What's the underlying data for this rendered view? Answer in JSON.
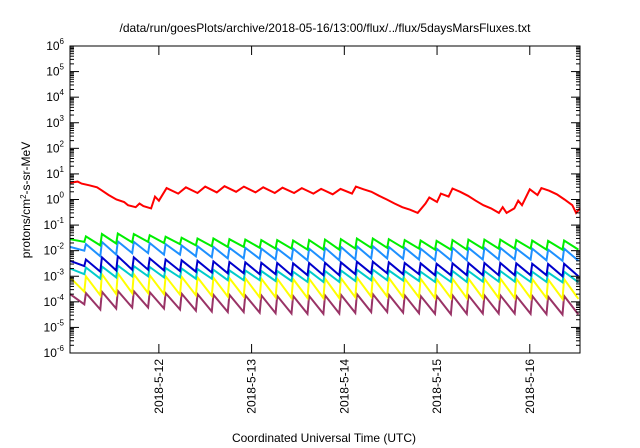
{
  "chart_data": {
    "type": "line",
    "title": "/data/run/goesPlots/archive/2018-05-16/13:00/flux/../flux/5daysMarsFluxes.txt",
    "xlabel": "Coordinated Universal Time (UTC)",
    "ylabel_parts": [
      "protons/cm",
      "2",
      "-s-sr-MeV"
    ],
    "y_scale": "log",
    "ylim": [
      1e-06,
      1000000.0
    ],
    "y_ticks": [
      {
        "base": "10",
        "exp": "-6",
        "value": 1e-06
      },
      {
        "base": "10",
        "exp": "-5",
        "value": 1e-05
      },
      {
        "base": "10",
        "exp": "-4",
        "value": 0.0001
      },
      {
        "base": "10",
        "exp": "-3",
        "value": 0.001
      },
      {
        "base": "10",
        "exp": "-2",
        "value": 0.01
      },
      {
        "base": "10",
        "exp": "-1",
        "value": 0.1
      },
      {
        "base": "10",
        "exp": "0",
        "value": 1
      },
      {
        "base": "10",
        "exp": "1",
        "value": 10
      },
      {
        "base": "10",
        "exp": "2",
        "value": 100
      },
      {
        "base": "10",
        "exp": "3",
        "value": 1000
      },
      {
        "base": "10",
        "exp": "4",
        "value": 10000
      },
      {
        "base": "10",
        "exp": "5",
        "value": 100000
      },
      {
        "base": "10",
        "exp": "6",
        "value": 1000000
      }
    ],
    "xlim": [
      "2018-05-11T01:00",
      "2018-05-16T13:00"
    ],
    "x_ticks": [
      {
        "label": "2018-5-12",
        "value": "2018-05-12T00:00"
      },
      {
        "label": "2018-5-13",
        "value": "2018-05-13T00:00"
      },
      {
        "label": "2018-5-14",
        "value": "2018-05-14T00:00"
      },
      {
        "label": "2018-5-15",
        "value": "2018-05-15T00:00"
      },
      {
        "label": "2018-5-16",
        "value": "2018-05-16T00:00"
      }
    ],
    "grid": false,
    "legend": "none",
    "series": [
      {
        "color": "#ff0000",
        "points": [
          [
            "2018-05-11T01:00",
            4.5
          ],
          [
            "2018-05-11T03:00",
            5.0
          ],
          [
            "2018-05-11T04:00",
            4.2
          ],
          [
            "2018-05-11T06:00",
            3.6
          ],
          [
            "2018-05-11T08:00",
            3.0
          ],
          [
            "2018-05-11T09:00",
            2.4
          ],
          [
            "2018-05-11T11:00",
            1.5
          ],
          [
            "2018-05-11T13:00",
            1.0
          ],
          [
            "2018-05-11T15:00",
            0.8
          ],
          [
            "2018-05-11T16:00",
            0.6
          ],
          [
            "2018-05-11T18:00",
            0.5
          ],
          [
            "2018-05-11T19:00",
            0.7
          ],
          [
            "2018-05-11T20:00",
            0.55
          ],
          [
            "2018-05-11T22:00",
            0.45
          ],
          [
            "2018-05-11T23:00",
            1.3
          ],
          [
            "2018-05-12T00:00",
            0.9
          ],
          [
            "2018-05-12T02:00",
            2.8
          ],
          [
            "2018-05-12T05:00",
            1.7
          ],
          [
            "2018-05-12T07:00",
            3.0
          ],
          [
            "2018-05-12T10:00",
            1.8
          ],
          [
            "2018-05-12T12:00",
            3.2
          ],
          [
            "2018-05-12T15:00",
            1.9
          ],
          [
            "2018-05-12T17:00",
            3.3
          ],
          [
            "2018-05-12T20:00",
            2.0
          ],
          [
            "2018-05-12T22:00",
            3.2
          ],
          [
            "2018-05-13T01:00",
            1.9
          ],
          [
            "2018-05-13T03:00",
            3.0
          ],
          [
            "2018-05-13T06:00",
            1.8
          ],
          [
            "2018-05-13T08:00",
            2.9
          ],
          [
            "2018-05-13T11:00",
            1.8
          ],
          [
            "2018-05-13T13:00",
            2.8
          ],
          [
            "2018-05-13T16:00",
            1.7
          ],
          [
            "2018-05-13T18:00",
            2.6
          ],
          [
            "2018-05-13T21:00",
            1.6
          ],
          [
            "2018-05-13T23:00",
            2.6
          ],
          [
            "2018-05-14T02:00",
            1.7
          ],
          [
            "2018-05-14T03:00",
            3.2
          ],
          [
            "2018-05-14T05:00",
            2.5
          ],
          [
            "2018-05-14T07:00",
            2.0
          ],
          [
            "2018-05-14T09:00",
            1.4
          ],
          [
            "2018-05-14T11:00",
            1.0
          ],
          [
            "2018-05-14T13:00",
            0.7
          ],
          [
            "2018-05-14T15:00",
            0.5
          ],
          [
            "2018-05-14T17:00",
            0.4
          ],
          [
            "2018-05-14T19:00",
            0.3
          ],
          [
            "2018-05-14T21:00",
            0.7
          ],
          [
            "2018-05-14T22:00",
            1.2
          ],
          [
            "2018-05-15T00:00",
            0.8
          ],
          [
            "2018-05-15T01:00",
            1.7
          ],
          [
            "2018-05-15T03:00",
            1.3
          ],
          [
            "2018-05-15T04:00",
            2.7
          ],
          [
            "2018-05-15T06:00",
            2.0
          ],
          [
            "2018-05-15T08:00",
            1.4
          ],
          [
            "2018-05-15T10:00",
            0.9
          ],
          [
            "2018-05-15T12:00",
            0.6
          ],
          [
            "2018-05-15T14:00",
            0.45
          ],
          [
            "2018-05-15T16:00",
            0.3
          ],
          [
            "2018-05-15T17:00",
            0.5
          ],
          [
            "2018-05-15T18:00",
            0.3
          ],
          [
            "2018-05-15T20:00",
            0.45
          ],
          [
            "2018-05-15T21:00",
            0.9
          ],
          [
            "2018-05-15T22:00",
            0.6
          ],
          [
            "2018-05-16T00:00",
            2.5
          ],
          [
            "2018-05-16T02:00",
            1.5
          ],
          [
            "2018-05-16T03:00",
            2.8
          ],
          [
            "2018-05-16T05:00",
            2.2
          ],
          [
            "2018-05-16T07:00",
            1.6
          ],
          [
            "2018-05-16T09:00",
            1.0
          ],
          [
            "2018-05-16T11:00",
            0.6
          ],
          [
            "2018-05-16T12:00",
            0.3
          ],
          [
            "2018-05-16T13:00",
            0.45
          ]
        ]
      },
      {
        "color": "#00ee00",
        "peaks": [
          0.028,
          0.036,
          0.045,
          0.047,
          0.045,
          0.04,
          0.035,
          0.032,
          0.03,
          0.03,
          0.028,
          0.027,
          0.026,
          0.026,
          0.025,
          0.026,
          0.027,
          0.028,
          0.03,
          0.03,
          0.028,
          0.026,
          0.025,
          0.024,
          0.026,
          0.027,
          0.027,
          0.027,
          0.026,
          0.025,
          0.024,
          0.025
        ],
        "troughs": [
          0.022,
          0.016,
          0.019,
          0.021,
          0.022,
          0.02,
          0.018,
          0.016,
          0.015,
          0.014,
          0.014,
          0.013,
          0.012,
          0.012,
          0.011,
          0.011,
          0.011,
          0.012,
          0.013,
          0.013,
          0.013,
          0.012,
          0.011,
          0.011,
          0.011,
          0.012,
          0.012,
          0.012,
          0.012,
          0.011,
          0.011,
          0.011
        ]
      },
      {
        "color": "#1e90ff",
        "peaks": [
          0.014,
          0.018,
          0.022,
          0.023,
          0.022,
          0.02,
          0.018,
          0.016,
          0.015,
          0.014,
          0.013,
          0.013,
          0.012,
          0.012,
          0.012,
          0.012,
          0.013,
          0.014,
          0.015,
          0.015,
          0.014,
          0.013,
          0.012,
          0.012,
          0.013,
          0.013,
          0.013,
          0.013,
          0.012,
          0.012,
          0.011,
          0.012
        ],
        "troughs": [
          0.01,
          0.006,
          0.007,
          0.008,
          0.008,
          0.007,
          0.007,
          0.006,
          0.0055,
          0.005,
          0.005,
          0.0048,
          0.0045,
          0.0045,
          0.0042,
          0.0042,
          0.0042,
          0.0045,
          0.005,
          0.005,
          0.0048,
          0.0045,
          0.0042,
          0.0042,
          0.0042,
          0.0045,
          0.0045,
          0.0045,
          0.0045,
          0.0042,
          0.004,
          0.004
        ]
      },
      {
        "color": "#0000cc",
        "peaks": [
          0.004,
          0.0045,
          0.0055,
          0.006,
          0.0055,
          0.005,
          0.0045,
          0.0042,
          0.004,
          0.0038,
          0.0036,
          0.0035,
          0.0034,
          0.0033,
          0.0032,
          0.0033,
          0.0034,
          0.0035,
          0.0037,
          0.0037,
          0.0035,
          0.0033,
          0.0032,
          0.0031,
          0.0032,
          0.0033,
          0.0033,
          0.0033,
          0.0032,
          0.0031,
          0.003,
          0.0031
        ],
        "troughs": [
          0.0025,
          0.0015,
          0.0017,
          0.0018,
          0.0018,
          0.0017,
          0.0016,
          0.0015,
          0.0014,
          0.0013,
          0.0013,
          0.0012,
          0.0012,
          0.0011,
          0.0011,
          0.0011,
          0.0011,
          0.0012,
          0.0013,
          0.0013,
          0.0012,
          0.0012,
          0.0011,
          0.0011,
          0.0011,
          0.0011,
          0.0011,
          0.0011,
          0.0011,
          0.0011,
          0.001,
          0.001
        ]
      },
      {
        "color": "#00cccc",
        "peaks": [
          0.002,
          0.0022,
          0.0024,
          0.0026,
          0.0025,
          0.0023,
          0.0021,
          0.002,
          0.0019,
          0.0018,
          0.0017,
          0.0017,
          0.0016,
          0.0016,
          0.0015,
          0.0016,
          0.0016,
          0.0017,
          0.0018,
          0.0018,
          0.0017,
          0.0016,
          0.0015,
          0.0015,
          0.0016,
          0.0016,
          0.0016,
          0.0016,
          0.0015,
          0.0015,
          0.0014,
          0.0015
        ],
        "troughs": [
          0.0012,
          0.0008,
          0.0009,
          0.001,
          0.001,
          0.0009,
          0.0009,
          0.0008,
          0.0008,
          0.0007,
          0.0007,
          0.0007,
          0.00065,
          0.00065,
          0.0006,
          0.0006,
          0.0006,
          0.00065,
          0.0007,
          0.0007,
          0.00068,
          0.00065,
          0.0006,
          0.0006,
          0.0006,
          0.00062,
          0.00062,
          0.00062,
          0.0006,
          0.0006,
          0.00058,
          0.00058
        ]
      },
      {
        "color": "#ffff00",
        "peaks": [
          0.0009,
          0.001,
          0.0012,
          0.0013,
          0.0012,
          0.0011,
          0.001,
          0.00095,
          0.0009,
          0.00088,
          0.00085,
          0.00083,
          0.0008,
          0.0008,
          0.00078,
          0.0008,
          0.00082,
          0.00085,
          0.0009,
          0.0009,
          0.00086,
          0.00082,
          0.0008,
          0.00078,
          0.0008,
          0.00082,
          0.00082,
          0.00082,
          0.0008,
          0.00078,
          0.00075,
          0.00078
        ],
        "troughs": [
          0.00025,
          0.00018,
          0.0002,
          0.00022,
          0.00022,
          0.0002,
          0.00019,
          0.00018,
          0.00017,
          0.00016,
          0.00016,
          0.00015,
          0.00015,
          0.00014,
          0.00014,
          0.00014,
          0.00014,
          0.00015,
          0.00016,
          0.00016,
          0.00015,
          0.00015,
          0.00014,
          0.00014,
          0.00014,
          0.00014,
          0.00014,
          0.00014,
          0.00014,
          0.00014,
          0.00013,
          0.00013
        ]
      },
      {
        "color": "#993366",
        "peaks": [
          0.0002,
          0.00022,
          0.00025,
          0.00027,
          0.00026,
          0.00024,
          0.00022,
          0.00021,
          0.0002,
          0.00019,
          0.00019,
          0.00018,
          0.00018,
          0.00017,
          0.00017,
          0.00017,
          0.00018,
          0.00019,
          0.0002,
          0.0002,
          0.00019,
          0.00018,
          0.00017,
          0.00017,
          0.00018,
          0.00018,
          0.00018,
          0.00018,
          0.00017,
          0.00017,
          0.00016,
          0.00017
        ],
        "troughs": [
          8e-05,
          5e-05,
          5.5e-05,
          6e-05,
          6e-05,
          5.5e-05,
          5e-05,
          4.5e-05,
          4.2e-05,
          4e-05,
          4e-05,
          3.8e-05,
          3.6e-05,
          3.5e-05,
          3.4e-05,
          3.4e-05,
          3.5e-05,
          3.7e-05,
          4e-05,
          4e-05,
          3.8e-05,
          3.6e-05,
          3.4e-05,
          3.3e-05,
          3.4e-05,
          3.5e-05,
          3.5e-05,
          3.5e-05,
          3.4e-05,
          3.3e-05,
          3.2e-05,
          3.2e-05
        ]
      }
    ]
  }
}
